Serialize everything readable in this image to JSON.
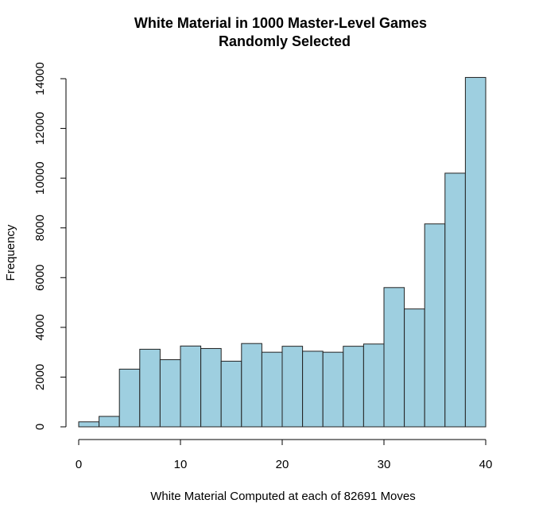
{
  "chart_data": {
    "type": "bar",
    "title": "White Material in 1000 Master-Level Games",
    "subtitle": "Randomly Selected",
    "xlabel": "White Material Computed at each of 82691 Moves",
    "ylabel": "Frequency",
    "bin_edges": [
      0,
      2,
      4,
      6,
      8,
      10,
      12,
      14,
      16,
      18,
      20,
      22,
      24,
      26,
      28,
      30,
      32,
      34,
      36,
      38,
      40
    ],
    "values": [
      200,
      420,
      2320,
      3120,
      2700,
      3250,
      3150,
      2640,
      3350,
      3000,
      3240,
      3040,
      3000,
      3240,
      3330,
      5600,
      4740,
      8160,
      10200,
      14050
    ],
    "xlim": [
      0,
      40
    ],
    "ylim": [
      0,
      14000
    ],
    "x_ticks": [
      0,
      10,
      20,
      30,
      40
    ],
    "y_ticks": [
      0,
      2000,
      4000,
      6000,
      8000,
      10000,
      12000,
      14000
    ],
    "grid": false,
    "bar_color": "#9ecfe0",
    "bar_edge_color": "#222222"
  }
}
